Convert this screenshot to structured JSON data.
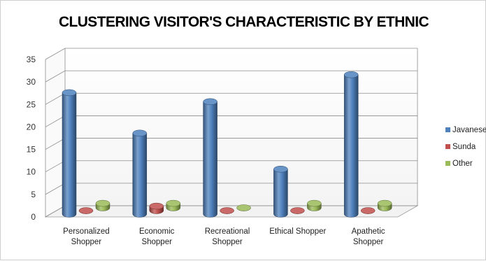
{
  "chart_data": {
    "type": "bar",
    "title": "CLUSTERING VISITOR'S CHARACTERISTIC BY ETHNIC",
    "xlabel": "",
    "ylabel": "",
    "categories": [
      [
        "Personalized",
        "Shopper"
      ],
      [
        "Economic",
        "Shopper"
      ],
      [
        "Recreational",
        "Shopper"
      ],
      [
        "Ethical Shopper"
      ],
      [
        "Apathetic",
        "Shopper"
      ]
    ],
    "series": [
      {
        "name": "Javanese",
        "color": "#4F81BD",
        "values": [
          27,
          18,
          25,
          10,
          31
        ]
      },
      {
        "name": "Sunda",
        "color": "#C0504D",
        "values": [
          0,
          1,
          0,
          0,
          0
        ]
      },
      {
        "name": "Other",
        "color": "#9BBB59",
        "values": [
          1,
          1,
          0,
          1,
          1
        ]
      }
    ],
    "ylim": [
      0,
      35
    ],
    "yticks": [
      0,
      5,
      10,
      15,
      20,
      25,
      30,
      35
    ],
    "grid": true,
    "legend": "right",
    "style": "3d-cylinder"
  }
}
